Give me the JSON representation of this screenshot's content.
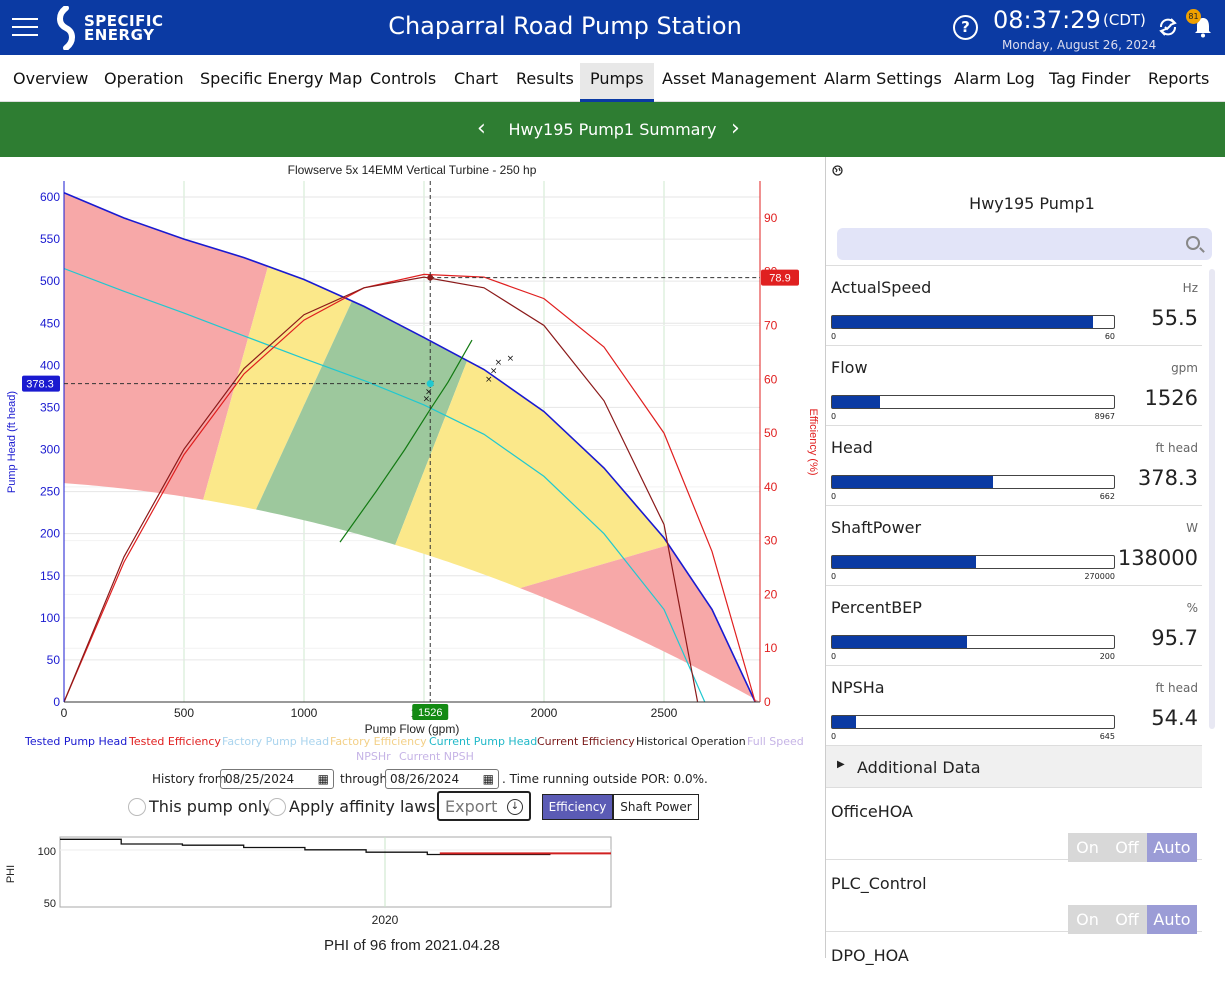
{
  "header": {
    "logo_line1": "SPECIFIC",
    "logo_line2": "ENERGY",
    "title": "Chaparral Road Pump Station",
    "time": "08:37:29",
    "timezone": "(CDT)",
    "date": "Monday, August 26, 2024",
    "notifications": "81",
    "help_icon": "?"
  },
  "tabs": [
    "Overview",
    "Operation",
    "Specific Energy Map",
    "Controls",
    "Chart",
    "Results",
    "Pumps",
    "Asset Management",
    "Alarm Settings",
    "Alarm Log",
    "Tag Finder",
    "Reports"
  ],
  "active_tab": "Pumps",
  "subheader": {
    "title": "Hwy195 Pump1 Summary",
    "prev": "‹",
    "next": "›"
  },
  "chart": {
    "title": "Flowserve 5x 14EMM Vertical Turbine - 250 hp",
    "xlabel": "Pump Flow (gpm)",
    "ylabel_left": "Pump Head (ft head)",
    "ylabel_right": "Efficiency (%)",
    "head_marker": "378.3",
    "eff_marker": "78.9",
    "flow_marker": "1526"
  },
  "chart_data": {
    "type": "line",
    "title": "Flowserve 5x 14EMM Vertical Turbine - 250 hp",
    "xlabel": "Pump Flow (gpm)",
    "ylabel": "Pump Head (ft head)",
    "y2label": "Efficiency (%)",
    "xlim": [
      0,
      2900
    ],
    "ylim": [
      0,
      600
    ],
    "y2lim": [
      0,
      95
    ],
    "x_ticks": [
      0,
      500,
      1000,
      1500,
      2000,
      2500
    ],
    "y_ticks": [
      0,
      50,
      100,
      150,
      200,
      250,
      300,
      350,
      400,
      450,
      500,
      550,
      600
    ],
    "y2_ticks": [
      0,
      10,
      20,
      30,
      40,
      50,
      60,
      70,
      80,
      90
    ],
    "series": [
      {
        "name": "Tested Pump Head",
        "axis": "left",
        "color": "#1a1ad0",
        "x": [
          0,
          250,
          500,
          750,
          1000,
          1250,
          1500,
          1750,
          2000,
          2250,
          2500,
          2700,
          2880
        ],
        "y": [
          605,
          575,
          550,
          528,
          502,
          470,
          433,
          395,
          345,
          278,
          195,
          110,
          0
        ]
      },
      {
        "name": "Current Pump Head",
        "axis": "left",
        "color": "#20c8d0",
        "x": [
          0,
          250,
          500,
          750,
          1000,
          1250,
          1500,
          1750,
          2000,
          2250,
          2500,
          2670
        ],
        "y": [
          515,
          488,
          462,
          435,
          408,
          382,
          353,
          318,
          268,
          200,
          110,
          0
        ]
      },
      {
        "name": "Tested Efficiency",
        "axis": "right",
        "color": "#e02020",
        "x": [
          0,
          250,
          500,
          750,
          1000,
          1250,
          1500,
          1750,
          2000,
          2250,
          2500,
          2700,
          2880
        ],
        "y": [
          0,
          26,
          46,
          61,
          71,
          77,
          79.5,
          79,
          75,
          66,
          50,
          28,
          0
        ]
      },
      {
        "name": "Current Efficiency",
        "axis": "right",
        "color": "#8b1a1a",
        "x": [
          0,
          250,
          500,
          750,
          1000,
          1250,
          1500,
          1750,
          2000,
          2250,
          2500,
          2640
        ],
        "y": [
          0,
          27,
          47,
          62,
          72,
          77,
          79,
          77,
          70,
          56,
          33,
          0
        ]
      },
      {
        "name": "Operating Path",
        "axis": "left",
        "color": "#137a13",
        "x": [
          1150,
          1300,
          1420,
          1520,
          1600,
          1700
        ],
        "y": [
          190,
          250,
          300,
          345,
          380,
          430
        ]
      }
    ],
    "zones": [
      {
        "name": "red-left",
        "color": "#f7a8a8"
      },
      {
        "name": "yellow-left",
        "color": "#fbe88a"
      },
      {
        "name": "green",
        "color": "#9dc89d"
      },
      {
        "name": "yellow-right",
        "color": "#fbe88a"
      },
      {
        "name": "red-right",
        "color": "#f7a8a8"
      }
    ],
    "historical_points": [
      [
        1520,
        370
      ],
      [
        1530,
        380
      ],
      [
        1510,
        362
      ],
      [
        1790,
        395
      ],
      [
        1810,
        405
      ],
      [
        1770,
        385
      ],
      [
        1860,
        410
      ]
    ],
    "current_point": {
      "flow": 1526,
      "head": 378.3,
      "efficiency": 78.9
    },
    "legend_position": "bottom"
  },
  "legend": [
    {
      "label": "Tested Pump Head",
      "color": "#1a1ad0"
    },
    {
      "label": "Tested Efficiency",
      "color": "#e02020"
    },
    {
      "label": "Factory Pump Head",
      "color": "#aad4ee"
    },
    {
      "label": "Factory Efficiency",
      "color": "#f3d087"
    },
    {
      "label": "Current Pump Head",
      "color": "#20b8c8"
    },
    {
      "label": "Current Efficiency",
      "color": "#7a1a1a"
    },
    {
      "label": "Historical Operation",
      "color": "#222222"
    },
    {
      "label": "Full Speed",
      "color": "#c6b4e6"
    },
    {
      "label": "NPSHr",
      "color": "#c6b4e6"
    },
    {
      "label": "Current NPSH",
      "color": "#c6b4e6"
    }
  ],
  "history": {
    "from_label": "History from",
    "from_value": "08/25/2024",
    "through_label": "through",
    "through_value": "08/26/2024",
    "summary": ". Time running outside POR: 0.0%."
  },
  "options": {
    "this_pump_only": "This pump only",
    "apply_affinity": "Apply affinity laws",
    "export": "Export",
    "efficiency": "Efficiency",
    "shaft_power": "Shaft Power"
  },
  "phi": {
    "ylabel": "PHI",
    "x_tick": "2020",
    "y_ticks": [
      "100",
      "50"
    ],
    "caption": "PHI of 96 from 2021.04.28",
    "series_values": [
      108,
      104,
      103,
      101,
      99,
      97,
      95,
      95,
      96,
      96
    ]
  },
  "side": {
    "title": "Hwy195 Pump1",
    "metrics": [
      {
        "name": "ActualSpeed",
        "unit": "Hz",
        "min": "0",
        "max": "60",
        "value": "55.5",
        "fraction": 0.925
      },
      {
        "name": "Flow",
        "unit": "gpm",
        "min": "0",
        "max": "8967",
        "value": "1526",
        "fraction": 0.17
      },
      {
        "name": "Head",
        "unit": "ft head",
        "min": "0",
        "max": "662",
        "value": "378.3",
        "fraction": 0.571
      },
      {
        "name": "ShaftPower",
        "unit": "W",
        "min": "0",
        "max": "270000",
        "value": "138000",
        "fraction": 0.511
      },
      {
        "name": "PercentBEP",
        "unit": "%",
        "min": "0",
        "max": "200",
        "value": "95.7",
        "fraction": 0.479
      },
      {
        "name": "NPSHa",
        "unit": "ft head",
        "min": "0",
        "max": "645",
        "value": "54.4",
        "fraction": 0.084
      }
    ],
    "additional_data": "Additional Data",
    "hoa": [
      {
        "name": "OfficeHOA",
        "on": "On",
        "off": "Off",
        "auto": "Auto"
      },
      {
        "name": "PLC_Control",
        "on": "On",
        "off": "Off",
        "auto": "Auto"
      },
      {
        "name": "DPO_HOA"
      }
    ]
  }
}
